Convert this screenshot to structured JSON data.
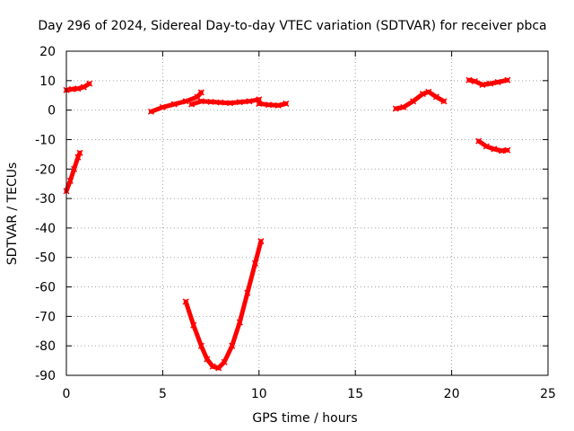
{
  "chart_data": {
    "type": "scatter",
    "title": "Day 296 of 2024, Sidereal Day-to-day VTEC variation (SDTVAR) for receiver pbca",
    "xlabel": "GPS time / hours",
    "ylabel": "SDTVAR / TECUs",
    "xlim": [
      0,
      25
    ],
    "ylim": [
      -90,
      20
    ],
    "xticks": [
      "0",
      "5",
      "10",
      "15",
      "20",
      "25"
    ],
    "yticks": [
      "20",
      "10",
      "0",
      "-10",
      "-20",
      "-30",
      "-40",
      "-50",
      "-60",
      "-70",
      "-80",
      "-90"
    ],
    "grid": true,
    "legend": "none",
    "color": "#ff0000",
    "series": [
      {
        "x": [
          0.0,
          0.3,
          0.6,
          0.9,
          1.2
        ],
        "y": [
          6.8,
          7.1,
          7.3,
          7.8,
          9.0
        ]
      },
      {
        "x": [
          0.0,
          0.2,
          0.4,
          0.6,
          0.7
        ],
        "y": [
          -27.5,
          -24.0,
          -20.0,
          -16.0,
          -14.5
        ]
      },
      {
        "x": [
          4.4,
          5.0,
          5.6,
          6.2,
          6.8,
          7.0
        ],
        "y": [
          -0.5,
          1.0,
          2.0,
          3.0,
          4.5,
          6.0
        ]
      },
      {
        "x": [
          6.2,
          6.6,
          7.0,
          7.3,
          7.6,
          7.9,
          8.2,
          8.6,
          9.0,
          9.4,
          9.8,
          10.1
        ],
        "y": [
          -65.0,
          -73.0,
          -80.0,
          -84.5,
          -87.0,
          -87.5,
          -85.5,
          -80.0,
          -72.0,
          -62.0,
          -52.0,
          -44.5
        ]
      },
      {
        "x": [
          6.5,
          7.0,
          7.5,
          8.0,
          8.5,
          9.0,
          9.5,
          10.0
        ],
        "y": [
          2.0,
          3.0,
          2.8,
          2.6,
          2.4,
          2.7,
          3.0,
          3.6
        ]
      },
      {
        "x": [
          10.0,
          10.5,
          11.0,
          11.4
        ],
        "y": [
          2.2,
          1.8,
          1.6,
          2.2
        ]
      },
      {
        "x": [
          17.1,
          17.5,
          18.0,
          18.5,
          18.8,
          19.2,
          19.6
        ],
        "y": [
          0.5,
          1.0,
          3.0,
          5.5,
          6.2,
          4.5,
          3.0
        ]
      },
      {
        "x": [
          20.9,
          21.2,
          21.6,
          22.0,
          22.4,
          22.9
        ],
        "y": [
          10.2,
          9.8,
          8.6,
          9.0,
          9.5,
          10.2
        ]
      },
      {
        "x": [
          21.4,
          21.8,
          22.2,
          22.6,
          22.9
        ],
        "y": [
          -10.5,
          -12.3,
          -13.2,
          -13.8,
          -13.6
        ]
      }
    ]
  }
}
